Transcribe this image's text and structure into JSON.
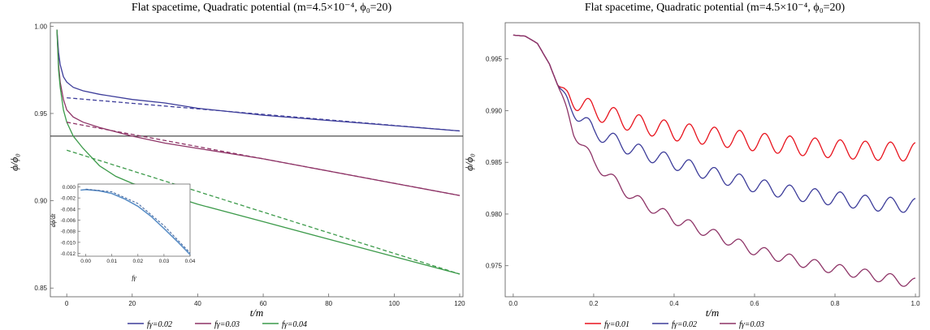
{
  "colors": {
    "blue": "#3d3d9a",
    "purple": "#8e3467",
    "green": "#3c9a4a",
    "red": "#e8141e",
    "inset": "#5b8fc7",
    "hline": "#222222"
  },
  "chart_data": [
    {
      "type": "line",
      "title": "Flat spacetime, Quadratic potential (m=4.5×10⁻⁴, ϕ₀=20)",
      "xlabel": "t/m",
      "ylabel": "ϕ/ϕ₀",
      "xlim": [
        -5,
        121
      ],
      "ylim": [
        0.845,
        1.002
      ],
      "xticks": [
        0,
        20,
        40,
        60,
        80,
        100,
        120
      ],
      "yticks": [
        0.85,
        0.9,
        0.95,
        1.0
      ],
      "ytick_labels": [
        "0.85",
        "0.90",
        "0.95",
        "1.00"
      ],
      "hline": 0.937,
      "legend_position": "bottom",
      "series": [
        {
          "name": "fγ=0.02",
          "color_key": "blue",
          "style": "solid",
          "x": [
            -3,
            -2.5,
            -2,
            -1,
            0,
            2,
            5,
            10,
            20,
            30,
            40,
            60,
            80,
            100,
            120
          ],
          "y": [
            0.998,
            0.985,
            0.978,
            0.971,
            0.968,
            0.965,
            0.963,
            0.961,
            0.958,
            0.956,
            0.953,
            0.949,
            0.946,
            0.943,
            0.94
          ]
        },
        {
          "name": "fγ=0.03",
          "color_key": "purple",
          "style": "solid",
          "x": [
            -3,
            -2.5,
            -2,
            -1,
            0,
            2,
            5,
            10,
            20,
            30,
            40,
            60,
            80,
            100,
            120
          ],
          "y": [
            0.998,
            0.978,
            0.968,
            0.958,
            0.952,
            0.948,
            0.945,
            0.942,
            0.937,
            0.933,
            0.93,
            0.924,
            0.917,
            0.91,
            0.903
          ]
        },
        {
          "name": "fγ=0.04",
          "color_key": "green",
          "style": "solid",
          "x": [
            -3,
            -2.5,
            -2,
            -1,
            0,
            2,
            5,
            10,
            15,
            20,
            30,
            40,
            60,
            80,
            100,
            120
          ],
          "y": [
            0.998,
            0.975,
            0.965,
            0.952,
            0.945,
            0.937,
            0.93,
            0.92,
            0.914,
            0.91,
            0.904,
            0.898,
            0.888,
            0.878,
            0.868,
            0.858
          ]
        },
        {
          "name": "",
          "color_key": "blue",
          "style": "dashed",
          "x": [
            0,
            120
          ],
          "y": [
            0.959,
            0.94
          ]
        },
        {
          "name": "",
          "color_key": "purple",
          "style": "dashed",
          "x": [
            0,
            120
          ],
          "y": [
            0.945,
            0.903
          ]
        },
        {
          "name": "",
          "color_key": "green",
          "style": "dashed",
          "x": [
            0,
            120
          ],
          "y": [
            0.929,
            0.858
          ]
        }
      ],
      "inset": {
        "xlabel": "fγ",
        "ylabel": "dϕ/dt",
        "xlim": [
          -0.003,
          0.04
        ],
        "ylim": [
          -0.0125,
          0.0005
        ],
        "xticks": [
          0,
          0.01,
          0.02,
          0.03,
          0.04
        ],
        "xtick_labels": [
          "0.00",
          "0.01",
          "0.02",
          "0.03",
          "0.04"
        ],
        "yticks": [
          0,
          -0.002,
          -0.004,
          -0.006,
          -0.008,
          -0.01,
          -0.012
        ],
        "ytick_labels": [
          "0.000",
          "-0.002",
          "-0.004",
          "-0.006",
          "-0.008",
          "-0.010",
          "-0.012"
        ],
        "series": [
          {
            "style": "solid",
            "x": [
              -0.002,
              0,
              0.005,
              0.01,
              0.015,
              0.02,
              0.025,
              0.03,
              0.035,
              0.04
            ],
            "y": [
              -0.0006,
              -0.0005,
              -0.0007,
              -0.0012,
              -0.0022,
              -0.0035,
              -0.0053,
              -0.0075,
              -0.0098,
              -0.0122
            ]
          },
          {
            "style": "dashed",
            "x": [
              0,
              0.01,
              0.02,
              0.03,
              0.04
            ],
            "y": [
              -0.0004,
              -0.0009,
              -0.003,
              -0.007,
              -0.0119
            ]
          }
        ]
      }
    },
    {
      "type": "line",
      "title": "Flat spacetime, Quadratic potential (m=4.5×10⁻⁴, ϕ₀=20)",
      "xlabel": "t/m",
      "ylabel": "ϕ/ϕ₀",
      "xlim": [
        -0.02,
        1.01
      ],
      "ylim": [
        0.972,
        0.9985
      ],
      "xticks": [
        0,
        0.2,
        0.4,
        0.6,
        0.8,
        1.0
      ],
      "xtick_labels": [
        "0.0",
        "0.2",
        "0.4",
        "0.6",
        "0.8",
        "1.0"
      ],
      "yticks": [
        0.975,
        0.98,
        0.985,
        0.99,
        0.995
      ],
      "ytick_labels": [
        "0.975",
        "0.980",
        "0.985",
        "0.990",
        "0.995"
      ],
      "legend_position": "bottom",
      "series": [
        {
          "name": "fγ=0.01",
          "color_key": "red",
          "base": [
            [
              0,
              0.9973
            ],
            [
              0.03,
              0.9972
            ],
            [
              0.06,
              0.9965
            ],
            [
              0.09,
              0.9945
            ],
            [
              0.11,
              0.9925
            ],
            [
              0.13,
              0.9915
            ],
            [
              0.2,
              0.99
            ],
            [
              0.3,
              0.9888
            ],
            [
              0.4,
              0.988
            ],
            [
              0.5,
              0.9875
            ],
            [
              0.6,
              0.987
            ],
            [
              0.7,
              0.9866
            ],
            [
              0.8,
              0.9863
            ],
            [
              0.9,
              0.9861
            ],
            [
              1.0,
              0.986
            ]
          ],
          "amp": 0.0009,
          "period": 0.0625
        },
        {
          "name": "fγ=0.02",
          "color_key": "blue",
          "base": [
            [
              0,
              0.9973
            ],
            [
              0.03,
              0.9972
            ],
            [
              0.06,
              0.9965
            ],
            [
              0.09,
              0.9945
            ],
            [
              0.11,
              0.9925
            ],
            [
              0.14,
              0.9905
            ],
            [
              0.2,
              0.988
            ],
            [
              0.3,
              0.9862
            ],
            [
              0.4,
              0.985
            ],
            [
              0.5,
              0.9838
            ],
            [
              0.6,
              0.9828
            ],
            [
              0.7,
              0.982
            ],
            [
              0.8,
              0.9815
            ],
            [
              0.9,
              0.981
            ],
            [
              1.0,
              0.9808
            ]
          ],
          "amp": 0.0007,
          "period": 0.0625
        },
        {
          "name": "fγ=0.03",
          "color_key": "purple",
          "base": [
            [
              0,
              0.9973
            ],
            [
              0.03,
              0.9972
            ],
            [
              0.06,
              0.9965
            ],
            [
              0.09,
              0.9945
            ],
            [
              0.12,
              0.9915
            ],
            [
              0.15,
              0.988
            ],
            [
              0.2,
              0.985
            ],
            [
              0.3,
              0.9815
            ],
            [
              0.4,
              0.9795
            ],
            [
              0.5,
              0.978
            ],
            [
              0.6,
              0.9765
            ],
            [
              0.7,
              0.9755
            ],
            [
              0.8,
              0.9747
            ],
            [
              0.9,
              0.974
            ],
            [
              1.0,
              0.9733
            ]
          ],
          "amp": 0.0005,
          "period": 0.0625
        }
      ]
    }
  ]
}
